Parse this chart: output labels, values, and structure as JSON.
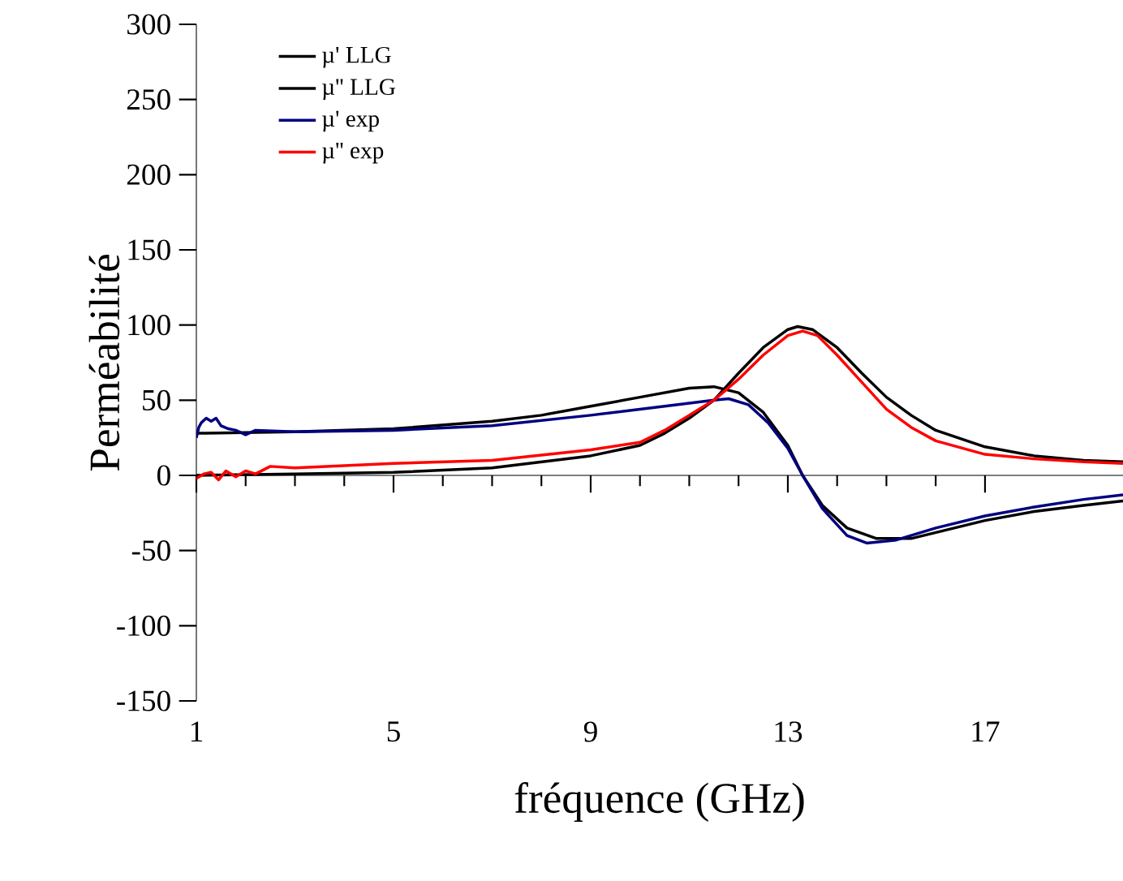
{
  "chart_data": {
    "type": "line",
    "xlabel": "fréquence (GHz)",
    "ylabel": "Perméabilité",
    "xlim": [
      1,
      19.8
    ],
    "ylim": [
      -150,
      300
    ],
    "xticks": [
      1,
      5,
      9,
      13,
      17
    ],
    "yticks": [
      -150,
      -100,
      -50,
      0,
      50,
      100,
      150,
      200,
      250,
      300
    ],
    "legend": "top left",
    "series": [
      {
        "name": "µ' LLG",
        "color": "#000000",
        "x": [
          1,
          3,
          5,
          7,
          8,
          9,
          10,
          10.5,
          11,
          11.5,
          12,
          12.5,
          13,
          13.3,
          13.7,
          14.2,
          14.8,
          15.5,
          16,
          17,
          18,
          19,
          19.8
        ],
        "values": [
          28,
          29,
          31,
          36,
          40,
          46,
          52,
          55,
          58,
          59,
          55,
          42,
          20,
          0,
          -20,
          -35,
          -42,
          -42,
          -38,
          -30,
          -24,
          -20,
          -17
        ]
      },
      {
        "name": "µ'' LLG",
        "color": "#000000",
        "x": [
          1,
          3,
          5,
          7,
          9,
          10,
          10.5,
          11,
          11.5,
          12,
          12.5,
          13,
          13.2,
          13.5,
          14,
          14.5,
          15,
          15.5,
          16,
          17,
          18,
          19,
          19.8
        ],
        "values": [
          0,
          1,
          2,
          5,
          13,
          20,
          28,
          38,
          50,
          68,
          85,
          97,
          99,
          97,
          85,
          68,
          52,
          40,
          30,
          19,
          13,
          10,
          9
        ]
      },
      {
        "name": "µ' exp",
        "color": "#000080",
        "x": [
          1,
          1.05,
          1.1,
          1.2,
          1.3,
          1.4,
          1.5,
          1.65,
          1.8,
          2,
          2.2,
          3,
          5,
          7,
          9,
          10.5,
          11.5,
          11.8,
          12.2,
          12.6,
          13,
          13.3,
          13.7,
          14.2,
          14.6,
          15.2,
          16,
          17,
          18,
          19,
          19.8
        ],
        "values": [
          25,
          32,
          35,
          38,
          36,
          38,
          33,
          31,
          30,
          27,
          30,
          29,
          30,
          33,
          40,
          46,
          50,
          51,
          47,
          35,
          18,
          0,
          -22,
          -40,
          -45,
          -43,
          -35,
          -27,
          -21,
          -16,
          -13
        ]
      },
      {
        "name": "µ'' exp",
        "color": "#ff0000",
        "x": [
          1,
          1.15,
          1.3,
          1.45,
          1.6,
          1.8,
          2,
          2.2,
          2.5,
          3,
          5,
          7,
          9,
          10,
          10.5,
          11,
          11.5,
          12,
          12.5,
          13,
          13.3,
          13.6,
          14,
          14.5,
          15,
          15.5,
          16,
          17,
          18,
          19,
          19.8
        ],
        "values": [
          -2,
          1,
          2,
          -3,
          3,
          -1,
          3,
          1,
          6,
          5,
          8,
          10,
          17,
          22,
          30,
          40,
          50,
          64,
          80,
          93,
          96,
          93,
          80,
          62,
          44,
          32,
          23,
          14,
          11,
          9,
          8
        ]
      }
    ]
  }
}
